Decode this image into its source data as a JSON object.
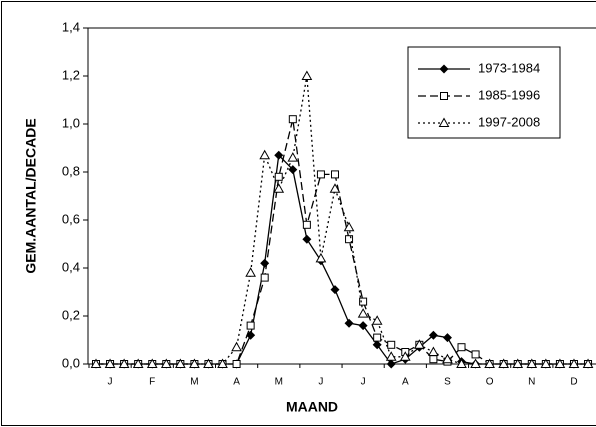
{
  "chart_data": {
    "type": "line",
    "x_label": "MAAND",
    "y_label": "GEM.AANTAL/DECADE",
    "categories": [
      null,
      "J",
      null,
      null,
      "F",
      null,
      null,
      "M",
      null,
      null,
      "A",
      null,
      null,
      "M",
      null,
      null,
      "J",
      null,
      null,
      "J",
      null,
      null,
      "A",
      null,
      null,
      "S",
      null,
      null,
      "O",
      null,
      null,
      "N",
      null,
      null,
      "D",
      null
    ],
    "series": [
      {
        "name": "1973-1984",
        "color": "#000000",
        "marker": "diamond",
        "dash": "solid",
        "values": [
          0,
          0,
          0,
          0,
          0,
          0,
          0,
          0,
          0,
          0,
          0,
          0.12,
          0.42,
          0.87,
          0.81,
          0.52,
          0.43,
          0.31,
          0.17,
          0.16,
          0.08,
          0,
          0.02,
          0.07,
          0.12,
          0.11,
          0.01,
          0,
          0,
          0,
          0,
          0,
          0,
          0,
          0,
          0
        ]
      },
      {
        "name": "1985-1996",
        "color": "#000000",
        "marker": "square",
        "dash": "dashed",
        "values": [
          0,
          0,
          0,
          0,
          0,
          0,
          0,
          0,
          0,
          0,
          0,
          0.16,
          0.36,
          0.78,
          1.02,
          0.58,
          0.79,
          0.79,
          0.52,
          0.26,
          0.11,
          0.08,
          0.05,
          0.08,
          0.02,
          0.01,
          0.07,
          0.04,
          0,
          0,
          0,
          0,
          0,
          0,
          0,
          0
        ]
      },
      {
        "name": "1997-2008",
        "color": "#000000",
        "marker": "triangle",
        "dash": "dotted",
        "values": [
          0,
          0,
          0,
          0,
          0,
          0,
          0,
          0,
          0,
          0,
          0.07,
          0.38,
          0.87,
          0.73,
          0.86,
          1.2,
          0.44,
          0.73,
          0.57,
          0.21,
          0.18,
          0.03,
          0.03,
          0.08,
          0.05,
          0.02,
          0,
          0,
          0,
          0,
          0,
          0,
          0,
          0,
          0,
          0
        ]
      }
    ],
    "ylim": [
      0,
      1.4
    ],
    "yticks": [
      {
        "value": 0,
        "label": "0,0"
      },
      {
        "value": 0.2,
        "label": "0,2"
      },
      {
        "value": 0.4,
        "label": "0,4"
      },
      {
        "value": 0.6,
        "label": "0,6"
      },
      {
        "value": 0.8,
        "label": "0,8"
      },
      {
        "value": 1.0,
        "label": "1,0"
      },
      {
        "value": 1.2,
        "label": "1,2"
      },
      {
        "value": 1.4,
        "label": "1,4"
      }
    ],
    "legend": "top-right"
  }
}
